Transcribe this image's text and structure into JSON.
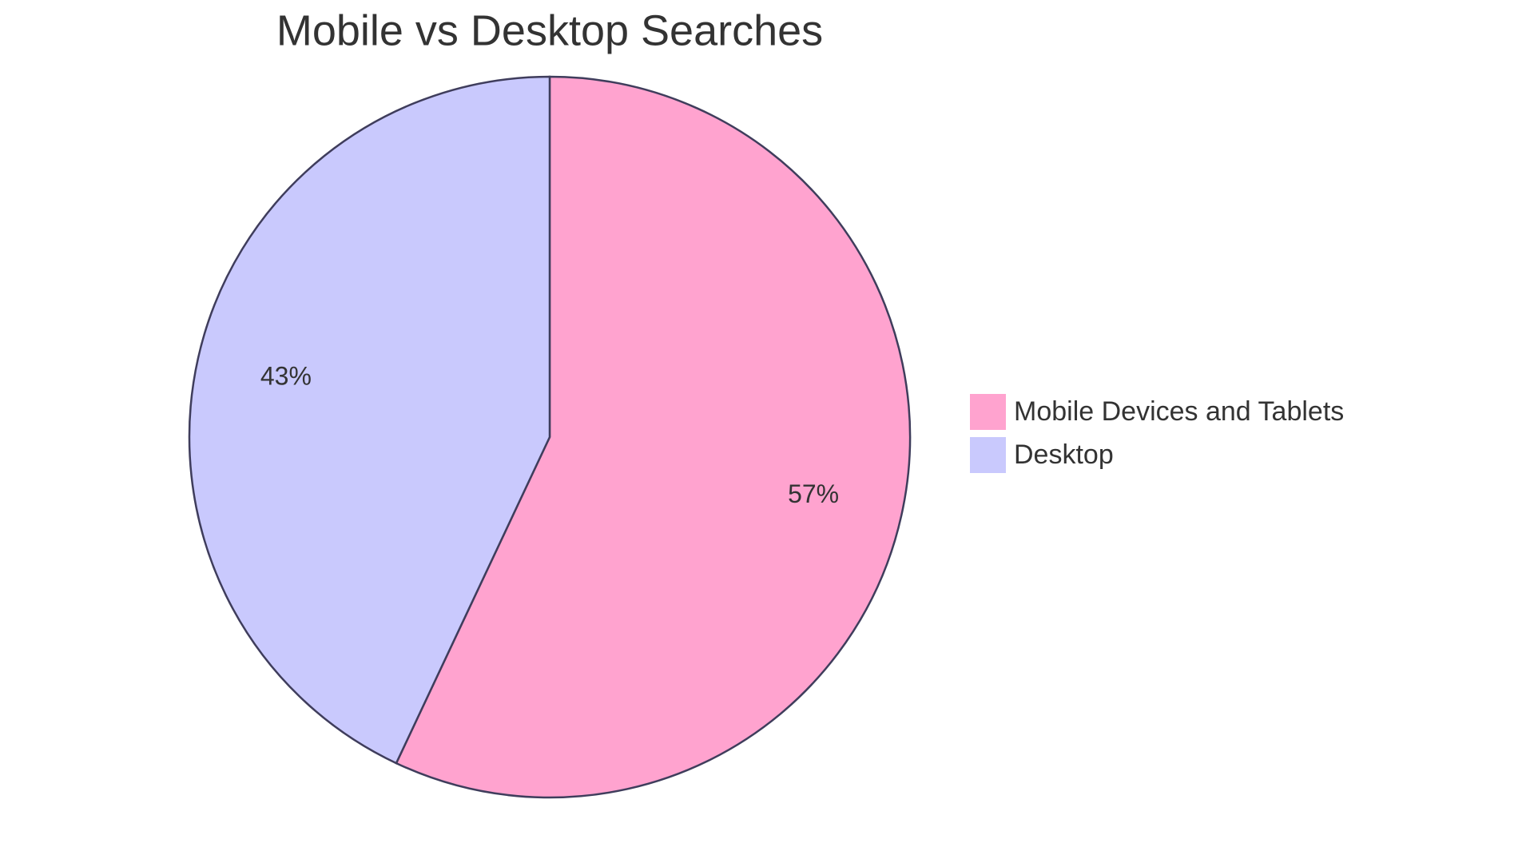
{
  "chart_data": {
    "type": "pie",
    "title": "Mobile vs Desktop Searches",
    "categories": [
      "Mobile Devices and Tablets",
      "Desktop"
    ],
    "values": [
      57,
      43
    ],
    "value_labels": [
      "57%",
      "43%"
    ],
    "colors": [
      "#ffa3cf",
      "#c9c9fd"
    ],
    "legend": "right"
  }
}
